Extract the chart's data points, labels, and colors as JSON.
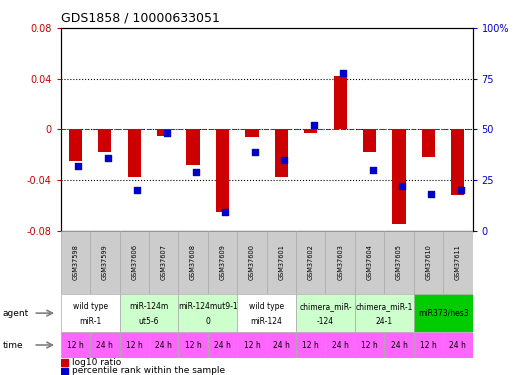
{
  "title": "GDS1858 / 10000633051",
  "samples": [
    "GSM37598",
    "GSM37599",
    "GSM37606",
    "GSM37607",
    "GSM37608",
    "GSM37609",
    "GSM37600",
    "GSM37601",
    "GSM37602",
    "GSM37603",
    "GSM37604",
    "GSM37605",
    "GSM37610",
    "GSM37611"
  ],
  "log10_ratio": [
    -0.025,
    -0.018,
    -0.038,
    -0.005,
    -0.028,
    -0.065,
    -0.006,
    -0.038,
    -0.003,
    0.042,
    -0.018,
    -0.075,
    -0.022,
    -0.052
  ],
  "percentile_rank": [
    32,
    36,
    20,
    48,
    29,
    9,
    39,
    35,
    52,
    78,
    30,
    22,
    18,
    20
  ],
  "agent_groups": [
    {
      "label": "wild type\nmiR-1",
      "start": 0,
      "end": 2,
      "color": "#ffffff"
    },
    {
      "label": "miR-124m\nut5-6",
      "start": 2,
      "end": 4,
      "color": "#ccffcc"
    },
    {
      "label": "miR-124mut9-1\n0",
      "start": 4,
      "end": 6,
      "color": "#ccffcc"
    },
    {
      "label": "wild type\nmiR-124",
      "start": 6,
      "end": 8,
      "color": "#ffffff"
    },
    {
      "label": "chimera_miR-\n-124",
      "start": 8,
      "end": 10,
      "color": "#ccffcc"
    },
    {
      "label": "chimera_miR-1\n24-1",
      "start": 10,
      "end": 12,
      "color": "#ccffcc"
    },
    {
      "label": "miR373/hes3",
      "start": 12,
      "end": 14,
      "color": "#00cc00"
    }
  ],
  "time_labels": [
    "12 h",
    "24 h",
    "12 h",
    "24 h",
    "12 h",
    "24 h",
    "12 h",
    "24 h",
    "12 h",
    "24 h",
    "12 h",
    "24 h",
    "12 h",
    "24 h"
  ],
  "time_color": "#ff66ff",
  "ylim_left": [
    -0.08,
    0.08
  ],
  "yticks_left": [
    -0.08,
    -0.04,
    0,
    0.04,
    0.08
  ],
  "yticks_right": [
    0,
    25,
    50,
    75,
    100
  ],
  "bar_color": "#cc0000",
  "dot_color": "#0000cc",
  "label_color_red": "#cc0000",
  "label_color_blue": "#0000cc",
  "sample_bg": "#cccccc",
  "figsize": [
    5.28,
    3.75
  ],
  "dpi": 100
}
